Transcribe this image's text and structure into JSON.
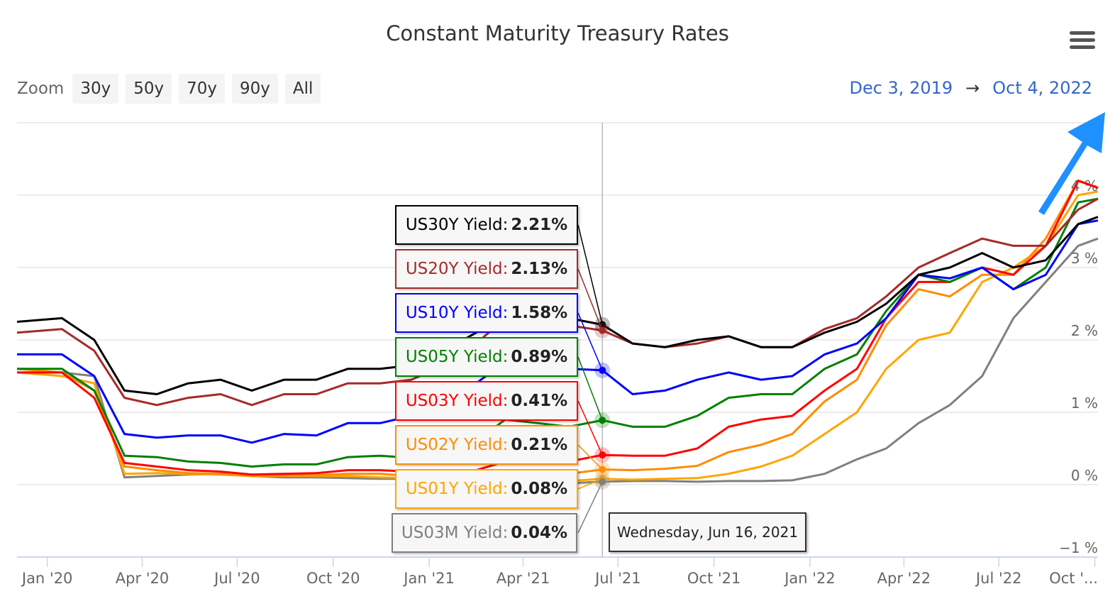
{
  "chart_data": {
    "type": "line",
    "title": "Constant Maturity Treasury Rates",
    "x": [
      "2019-12-03",
      "2020-01-15",
      "2020-02-15",
      "2020-03-15",
      "2020-04-15",
      "2020-05-15",
      "2020-06-15",
      "2020-07-15",
      "2020-08-15",
      "2020-09-15",
      "2020-10-15",
      "2020-11-15",
      "2020-12-15",
      "2021-01-15",
      "2021-02-15",
      "2021-03-15",
      "2021-04-15",
      "2021-05-15",
      "2021-06-16",
      "2021-07-15",
      "2021-08-15",
      "2021-09-15",
      "2021-10-15",
      "2021-11-15",
      "2021-12-15",
      "2022-01-15",
      "2022-02-15",
      "2022-03-15",
      "2022-04-15",
      "2022-05-15",
      "2022-06-15",
      "2022-07-15",
      "2022-08-15",
      "2022-09-15",
      "2022-10-04"
    ],
    "xlim": [
      "2019-12-03",
      "2022-10-04"
    ],
    "x_ticks": [
      "Jan '20",
      "Apr '20",
      "Jul '20",
      "Oct '20",
      "Jan '21",
      "Apr '21",
      "Jul '21",
      "Oct '21",
      "Jan '22",
      "Apr '22",
      "Jul '22",
      "Oct '..."
    ],
    "x_tick_dates": [
      "2020-01-01",
      "2020-04-01",
      "2020-07-01",
      "2020-10-01",
      "2021-01-01",
      "2021-04-01",
      "2021-07-01",
      "2021-10-01",
      "2022-01-01",
      "2022-04-01",
      "2022-07-01",
      "2022-10-01"
    ],
    "ylim": [
      -1,
      5
    ],
    "y_ticks": [
      -1,
      0,
      1,
      2,
      3,
      4
    ],
    "y_tick_labels": [
      "−1 %",
      "0 %",
      "1 %",
      "2 %",
      "3 %",
      "4 %"
    ],
    "grid": true,
    "y_axis_side": "right",
    "series": [
      {
        "name": "US30Y Yield",
        "color": "#000000",
        "values": [
          2.25,
          2.3,
          2.0,
          1.3,
          1.25,
          1.4,
          1.45,
          1.3,
          1.45,
          1.45,
          1.6,
          1.6,
          1.65,
          1.85,
          2.1,
          2.4,
          2.3,
          2.3,
          2.21,
          1.95,
          1.9,
          2.0,
          2.05,
          1.9,
          1.9,
          2.1,
          2.25,
          2.5,
          2.9,
          3.0,
          3.2,
          3.0,
          3.1,
          3.6,
          3.7
        ]
      },
      {
        "name": "US20Y Yield",
        "color": "#a52a2a",
        "values": [
          2.1,
          2.15,
          1.85,
          1.2,
          1.1,
          1.2,
          1.25,
          1.1,
          1.25,
          1.25,
          1.4,
          1.4,
          1.45,
          1.65,
          1.95,
          2.3,
          2.2,
          2.2,
          2.13,
          1.95,
          1.9,
          1.95,
          2.05,
          1.9,
          1.9,
          2.15,
          2.3,
          2.6,
          3.0,
          3.2,
          3.4,
          3.3,
          3.3,
          3.8,
          3.95
        ]
      },
      {
        "name": "US10Y Yield",
        "color": "#0000ff",
        "values": [
          1.8,
          1.8,
          1.5,
          0.7,
          0.65,
          0.68,
          0.68,
          0.58,
          0.7,
          0.68,
          0.85,
          0.85,
          0.95,
          1.1,
          1.4,
          1.7,
          1.65,
          1.6,
          1.58,
          1.25,
          1.3,
          1.45,
          1.55,
          1.45,
          1.5,
          1.8,
          1.95,
          2.3,
          2.9,
          2.85,
          3.0,
          2.7,
          2.9,
          3.6,
          3.65
        ]
      },
      {
        "name": "US05Y Yield",
        "color": "#008000",
        "values": [
          1.6,
          1.6,
          1.3,
          0.4,
          0.38,
          0.32,
          0.3,
          0.25,
          0.28,
          0.28,
          0.38,
          0.4,
          0.37,
          0.45,
          0.6,
          0.9,
          0.85,
          0.8,
          0.89,
          0.8,
          0.8,
          0.95,
          1.2,
          1.25,
          1.25,
          1.6,
          1.8,
          2.4,
          2.9,
          2.8,
          3.0,
          2.7,
          3.0,
          3.9,
          3.95
        ]
      },
      {
        "name": "US03Y Yield",
        "color": "#ff0000",
        "values": [
          1.55,
          1.55,
          1.2,
          0.3,
          0.25,
          0.2,
          0.18,
          0.14,
          0.15,
          0.16,
          0.2,
          0.2,
          0.18,
          0.18,
          0.2,
          0.32,
          0.35,
          0.32,
          0.41,
          0.4,
          0.4,
          0.5,
          0.8,
          0.9,
          0.95,
          1.3,
          1.6,
          2.3,
          2.8,
          2.8,
          3.0,
          2.9,
          3.3,
          4.2,
          4.1
        ]
      },
      {
        "name": "US02Y Yield",
        "color": "#ff8c00",
        "values": [
          1.6,
          1.55,
          1.3,
          0.25,
          0.2,
          0.16,
          0.15,
          0.12,
          0.13,
          0.13,
          0.15,
          0.15,
          0.12,
          0.12,
          0.11,
          0.14,
          0.16,
          0.15,
          0.21,
          0.2,
          0.22,
          0.26,
          0.45,
          0.55,
          0.7,
          1.15,
          1.45,
          2.2,
          2.7,
          2.6,
          2.9,
          2.9,
          3.4,
          4.2,
          4.1
        ]
      },
      {
        "name": "US01Y Yield",
        "color": "#ffa500",
        "values": [
          1.55,
          1.5,
          1.4,
          0.15,
          0.16,
          0.15,
          0.14,
          0.12,
          0.12,
          0.12,
          0.12,
          0.1,
          0.09,
          0.08,
          0.07,
          0.06,
          0.06,
          0.05,
          0.08,
          0.07,
          0.08,
          0.09,
          0.15,
          0.25,
          0.4,
          0.7,
          1.0,
          1.6,
          2.0,
          2.1,
          2.8,
          3.0,
          3.3,
          4.0,
          4.05
        ]
      },
      {
        "name": "US03M Yield",
        "color": "#808080",
        "values": [
          1.55,
          1.55,
          1.5,
          0.1,
          0.12,
          0.14,
          0.15,
          0.12,
          0.1,
          0.1,
          0.09,
          0.08,
          0.08,
          0.07,
          0.04,
          0.03,
          0.02,
          0.02,
          0.04,
          0.05,
          0.05,
          0.04,
          0.05,
          0.05,
          0.06,
          0.15,
          0.35,
          0.5,
          0.85,
          1.1,
          1.5,
          2.3,
          2.8,
          3.3,
          3.4
        ]
      }
    ],
    "tooltip": {
      "date": "Wednesday, Jun 16, 2021",
      "hover_date": "2021-06-16",
      "items": [
        {
          "label": "US30Y Yield",
          "value": "2.21%",
          "color": "#000000"
        },
        {
          "label": "US20Y Yield",
          "value": "2.13%",
          "color": "#a52a2a"
        },
        {
          "label": "US10Y Yield",
          "value": "1.58%",
          "color": "#0000ff"
        },
        {
          "label": "US05Y Yield",
          "value": "0.89%",
          "color": "#008000"
        },
        {
          "label": "US03Y Yield",
          "value": "0.41%",
          "color": "#ff0000"
        },
        {
          "label": "US02Y Yield",
          "value": "0.21%",
          "color": "#ff8c00"
        },
        {
          "label": "US01Y Yield",
          "value": "0.08%",
          "color": "#ffa500"
        },
        {
          "label": "US03M Yield",
          "value": "0.04%",
          "color": "#808080"
        }
      ]
    }
  },
  "toolbar": {
    "zoom_label": "Zoom",
    "zoom_buttons": [
      "30y",
      "50y",
      "70y",
      "90y",
      "All"
    ],
    "range_from": "Dec 3, 2019",
    "range_arrow": "→",
    "range_to": "Oct 4, 2022"
  },
  "icons": {
    "menu": "hamburger-menu-icon",
    "annotation": "arrow-up-right-icon"
  },
  "colors": {
    "annotation_arrow": "#1e90ff",
    "range_text": "#3366cc"
  }
}
